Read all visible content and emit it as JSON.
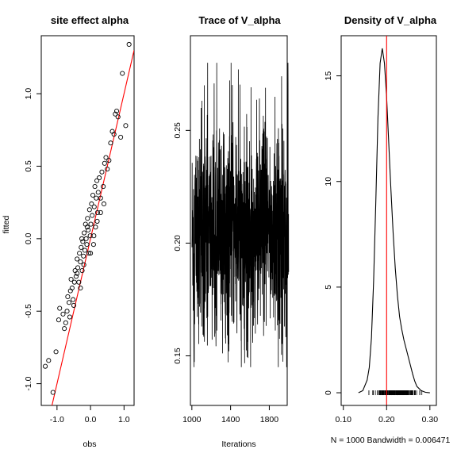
{
  "chart_data": [
    {
      "type": "scatter",
      "title": "site effect alpha",
      "xlabel": "obs",
      "ylabel": "fitted",
      "xlim": [
        -1.47,
        1.3
      ],
      "ylim": [
        -1.15,
        1.4
      ],
      "xticks": [
        -1.0,
        0.0,
        1.0
      ],
      "xtick_labels": [
        "-1.0",
        "0.0",
        "1.0"
      ],
      "yticks": [
        -1.0,
        -0.5,
        0.0,
        0.5,
        1.0
      ],
      "ytick_labels": [
        "-1.0",
        "-0.5",
        "0.0",
        "0.5",
        "1.0"
      ],
      "reference_line": {
        "intercept": 0.0,
        "slope": 1.0,
        "color": "#ff0000"
      },
      "points": [
        [
          -1.35,
          -0.88
        ],
        [
          -1.25,
          -0.84
        ],
        [
          -1.12,
          -1.06
        ],
        [
          -1.03,
          -0.78
        ],
        [
          -0.95,
          -0.56
        ],
        [
          -0.92,
          -0.48
        ],
        [
          -0.82,
          -0.52
        ],
        [
          -0.78,
          -0.62
        ],
        [
          -0.74,
          -0.58
        ],
        [
          -0.7,
          -0.5
        ],
        [
          -0.68,
          -0.4
        ],
        [
          -0.64,
          -0.44
        ],
        [
          -0.6,
          -0.36
        ],
        [
          -0.58,
          -0.28
        ],
        [
          -0.55,
          -0.34
        ],
        [
          -0.52,
          -0.42
        ],
        [
          -0.48,
          -0.3
        ],
        [
          -0.46,
          -0.22
        ],
        [
          -0.43,
          -0.26
        ],
        [
          -0.4,
          -0.14
        ],
        [
          -0.38,
          -0.2
        ],
        [
          -0.35,
          -0.3
        ],
        [
          -0.33,
          -0.1
        ],
        [
          -0.3,
          -0.16
        ],
        [
          -0.28,
          -0.06
        ],
        [
          -0.25,
          -0.22
        ],
        [
          -0.23,
          -0.02
        ],
        [
          -0.21,
          -0.12
        ],
        [
          -0.19,
          0.04
        ],
        [
          -0.17,
          -0.08
        ],
        [
          -0.15,
          0.1
        ],
        [
          -0.13,
          0.0
        ],
        [
          -0.11,
          -0.04
        ],
        [
          -0.09,
          0.14
        ],
        [
          -0.07,
          0.06
        ],
        [
          -0.05,
          -0.1
        ],
        [
          -0.03,
          0.2
        ],
        [
          -0.01,
          0.02
        ],
        [
          0.01,
          0.1
        ],
        [
          0.03,
          0.24
        ],
        [
          0.05,
          0.16
        ],
        [
          0.07,
          0.3
        ],
        [
          0.09,
          -0.04
        ],
        [
          0.11,
          0.22
        ],
        [
          0.13,
          0.36
        ],
        [
          0.15,
          0.08
        ],
        [
          0.17,
          0.28
        ],
        [
          0.19,
          0.4
        ],
        [
          0.21,
          0.18
        ],
        [
          0.23,
          0.32
        ],
        [
          0.26,
          0.42
        ],
        [
          0.3,
          0.28
        ],
        [
          0.34,
          0.46
        ],
        [
          0.38,
          0.36
        ],
        [
          0.42,
          0.52
        ],
        [
          0.46,
          0.56
        ],
        [
          0.5,
          0.48
        ],
        [
          0.55,
          0.54
        ],
        [
          0.6,
          0.66
        ],
        [
          0.65,
          0.74
        ],
        [
          0.7,
          0.72
        ],
        [
          0.74,
          0.86
        ],
        [
          0.78,
          0.88
        ],
        [
          0.82,
          0.84
        ],
        [
          0.9,
          0.7
        ],
        [
          0.95,
          1.14
        ],
        [
          1.05,
          0.78
        ],
        [
          1.15,
          1.34
        ],
        [
          -0.62,
          -0.54
        ],
        [
          -0.5,
          -0.46
        ],
        [
          -0.4,
          -0.24
        ],
        [
          -0.3,
          -0.34
        ],
        [
          -0.2,
          -0.18
        ],
        [
          -0.1,
          0.08
        ],
        [
          0.0,
          -0.1
        ],
        [
          0.1,
          0.02
        ],
        [
          0.2,
          0.12
        ],
        [
          0.3,
          0.18
        ],
        [
          0.4,
          0.24
        ],
        [
          -0.26,
          0.0
        ]
      ]
    },
    {
      "type": "line",
      "title": "Trace of V_alpha",
      "xlabel": "Iterations",
      "ylabel": "",
      "xlim": [
        985,
        1985
      ],
      "ylim": [
        0.128,
        0.292
      ],
      "xticks": [
        1000,
        1400,
        1800
      ],
      "xtick_labels": [
        "1000",
        "1400",
        "1800"
      ],
      "yticks": [
        0.15,
        0.2,
        0.25
      ],
      "ytick_labels": [
        "0.15",
        "0.20",
        "0.25"
      ],
      "n_iterations": 1000,
      "series_summary": {
        "center": 0.205,
        "spread": 0.022,
        "min": 0.145,
        "max": 0.28
      }
    },
    {
      "type": "line",
      "title": "Density of V_alpha",
      "xlabel": "N = 1000   Bandwidth = 0.006471",
      "ylabel": "",
      "xlim": [
        0.095,
        0.315
      ],
      "ylim": [
        -0.6,
        16.9
      ],
      "xticks": [
        0.1,
        0.2,
        0.3
      ],
      "xtick_labels": [
        "0.10",
        "0.20",
        "0.30"
      ],
      "yticks": [
        0,
        5,
        10,
        15
      ],
      "ytick_labels": [
        "0",
        "5",
        "10",
        "15"
      ],
      "reference_line": {
        "x": 0.2,
        "color": "#ff0000"
      },
      "density": {
        "x": [
          0.135,
          0.145,
          0.155,
          0.16,
          0.165,
          0.17,
          0.175,
          0.18,
          0.185,
          0.19,
          0.195,
          0.2,
          0.205,
          0.21,
          0.215,
          0.22,
          0.225,
          0.23,
          0.235,
          0.24,
          0.245,
          0.25,
          0.255,
          0.26,
          0.265,
          0.27,
          0.28,
          0.29,
          0.3
        ],
        "y": [
          0.0,
          0.1,
          0.6,
          1.2,
          2.6,
          5.3,
          9.0,
          13.0,
          15.6,
          16.3,
          15.6,
          14.0,
          11.8,
          9.6,
          7.6,
          5.9,
          4.6,
          3.6,
          3.0,
          2.5,
          2.1,
          1.7,
          1.3,
          0.9,
          0.55,
          0.3,
          0.1,
          0.02,
          0.0
        ]
      },
      "rug_range": [
        0.15,
        0.29
      ]
    }
  ]
}
